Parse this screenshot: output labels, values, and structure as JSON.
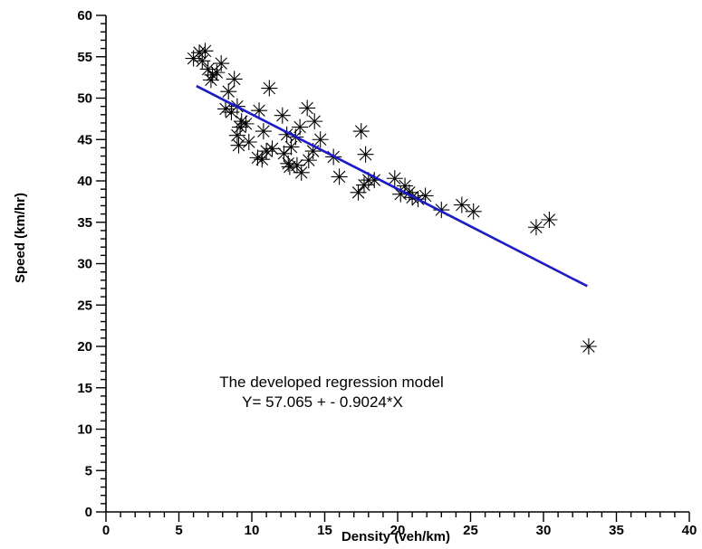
{
  "chart_data": {
    "type": "scatter",
    "xlabel": "Density (veh/km)",
    "ylabel": "Speed (km/hr)",
    "xlim": [
      0,
      40
    ],
    "ylim": [
      0,
      60
    ],
    "x_major_step": 5,
    "x_minor_step": 1,
    "y_major_step": 5,
    "y_minor_step": 1,
    "x_tick_labels": [
      "0",
      "5",
      "10",
      "15",
      "20",
      "25",
      "30",
      "35",
      "40"
    ],
    "y_tick_labels": [
      "0",
      "5",
      "10",
      "15",
      "20",
      "25",
      "30",
      "35",
      "40",
      "45",
      "50",
      "55",
      "60"
    ],
    "grid": false,
    "marker": "asterisk",
    "marker_color": "#000000",
    "line_color": "#1a1ad0",
    "regression_line": {
      "intercept": 57.065,
      "slope": -0.9024,
      "x_range": [
        6.2,
        33
      ]
    },
    "points": [
      {
        "x": 6.0,
        "y": 54.8
      },
      {
        "x": 6.4,
        "y": 55.5
      },
      {
        "x": 6.8,
        "y": 55.7
      },
      {
        "x": 6.6,
        "y": 54.5
      },
      {
        "x": 7.0,
        "y": 53.5
      },
      {
        "x": 7.3,
        "y": 52.8
      },
      {
        "x": 7.2,
        "y": 52.2
      },
      {
        "x": 7.6,
        "y": 53.1
      },
      {
        "x": 7.9,
        "y": 54.2
      },
      {
        "x": 8.8,
        "y": 52.3
      },
      {
        "x": 8.4,
        "y": 50.8
      },
      {
        "x": 8.2,
        "y": 48.7
      },
      {
        "x": 8.6,
        "y": 48.3
      },
      {
        "x": 9.0,
        "y": 49.0
      },
      {
        "x": 9.3,
        "y": 47.2
      },
      {
        "x": 9.6,
        "y": 46.9
      },
      {
        "x": 9.2,
        "y": 46.5
      },
      {
        "x": 9.0,
        "y": 45.5
      },
      {
        "x": 9.1,
        "y": 44.3
      },
      {
        "x": 9.8,
        "y": 44.7
      },
      {
        "x": 10.5,
        "y": 48.5
      },
      {
        "x": 10.8,
        "y": 46.0
      },
      {
        "x": 10.4,
        "y": 42.8
      },
      {
        "x": 10.7,
        "y": 42.6
      },
      {
        "x": 11.0,
        "y": 43.6
      },
      {
        "x": 11.2,
        "y": 51.2
      },
      {
        "x": 11.4,
        "y": 43.9
      },
      {
        "x": 12.1,
        "y": 47.9
      },
      {
        "x": 12.4,
        "y": 45.6
      },
      {
        "x": 12.7,
        "y": 44.1
      },
      {
        "x": 12.2,
        "y": 43.3
      },
      {
        "x": 12.5,
        "y": 42.1
      },
      {
        "x": 12.6,
        "y": 41.7
      },
      {
        "x": 13.0,
        "y": 45.3
      },
      {
        "x": 13.3,
        "y": 46.5
      },
      {
        "x": 13.1,
        "y": 41.9
      },
      {
        "x": 13.4,
        "y": 41.0
      },
      {
        "x": 13.8,
        "y": 48.8
      },
      {
        "x": 13.9,
        "y": 42.5
      },
      {
        "x": 14.3,
        "y": 47.2
      },
      {
        "x": 14.7,
        "y": 45.0
      },
      {
        "x": 14.2,
        "y": 43.6
      },
      {
        "x": 15.6,
        "y": 42.9
      },
      {
        "x": 16.0,
        "y": 40.5
      },
      {
        "x": 17.3,
        "y": 38.6
      },
      {
        "x": 17.5,
        "y": 46.0
      },
      {
        "x": 17.8,
        "y": 43.2
      },
      {
        "x": 17.7,
        "y": 39.5
      },
      {
        "x": 18.0,
        "y": 40.1
      },
      {
        "x": 18.4,
        "y": 40.1
      },
      {
        "x": 19.8,
        "y": 40.3
      },
      {
        "x": 20.2,
        "y": 38.4
      },
      {
        "x": 20.5,
        "y": 39.4
      },
      {
        "x": 20.8,
        "y": 38.6
      },
      {
        "x": 21.0,
        "y": 38.0
      },
      {
        "x": 21.4,
        "y": 37.8
      },
      {
        "x": 21.9,
        "y": 38.2
      },
      {
        "x": 23.0,
        "y": 36.5
      },
      {
        "x": 24.4,
        "y": 37.1
      },
      {
        "x": 25.2,
        "y": 36.3
      },
      {
        "x": 29.5,
        "y": 34.4
      },
      {
        "x": 30.4,
        "y": 35.3
      },
      {
        "x": 33.1,
        "y": 20.0
      }
    ]
  },
  "annotation": {
    "line1": "The developed regression model",
    "line2": "Y= 57.065 + - 0.9024*X"
  }
}
